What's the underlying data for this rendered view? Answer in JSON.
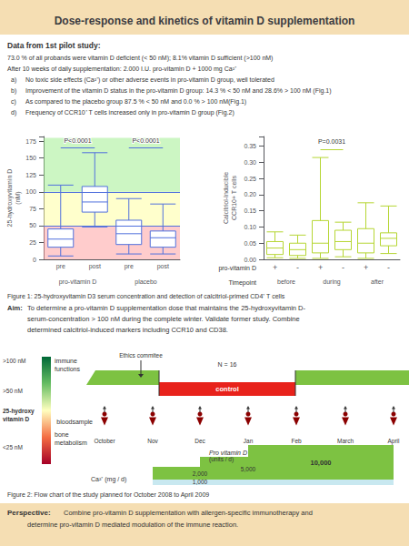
{
  "title": "Dose-response and kinetics of vitamin D supplementation",
  "title_bg": "#f5deb3",
  "pilot": {
    "title": "Data from 1st pilot study:",
    "lines": [
      "73.0 % of all probands were vitamin D deficient (< 50 nM); 8.1% vitamin D sufficient (>100 nM)",
      "After 10 weeks of daily supplementation: 2.000 I.U. pro-vitamin D + 1000 mg Ca²⁺"
    ],
    "items": [
      {
        "label": "a)",
        "text": "No toxic side effects (Ca²⁺) or other adverse events in pro-vitamin D group, well tolerated"
      },
      {
        "label": "b)",
        "text": "Improvement of the vitamin D status in the pro-vitamin D group: 14.3 % < 50 nM and 28.6% > 100 nM (Fig.1)"
      },
      {
        "label": "c)",
        "text": "As compared to the placebo group 87.5 % < 50 nM and 0.0 % > 100 nM(Fig.1)"
      },
      {
        "label": "d)",
        "text": "Frequency of CCR10⁺ T cells increased only in pro-vitamin D group (Fig.2)"
      }
    ]
  },
  "chart_data": [
    {
      "type": "box",
      "categories": [
        "pre",
        "post",
        "pre",
        "post"
      ],
      "groups": [
        "pro-vitamin D",
        "placebo"
      ],
      "ylabel": "25-hydroxyvitamin D\n(nM)",
      "ylim": [
        0,
        182
      ],
      "yticks": [
        0,
        25,
        50,
        75,
        100,
        125,
        150,
        175
      ],
      "grid": false,
      "boxes": [
        {
          "wlo": 5,
          "q1": 18,
          "med": 30,
          "q3": 45,
          "whi": 110
        },
        {
          "wlo": 48,
          "q1": 70,
          "med": 85,
          "q3": 108,
          "whi": 158
        },
        {
          "wlo": 8,
          "q1": 22,
          "med": 38,
          "q3": 58,
          "whi": 90
        },
        {
          "wlo": 8,
          "q1": 18,
          "med": 32,
          "q3": 42,
          "whi": 82
        }
      ],
      "bands": [
        {
          "range": [
            0,
            50
          ],
          "color": "#ff9999"
        },
        {
          "range": [
            50,
            100
          ],
          "color": "#ffff99"
        },
        {
          "range": [
            100,
            180
          ],
          "color": "#99ee88"
        }
      ],
      "hlines": [
        50,
        100
      ],
      "brackets": [
        {
          "group": "pro-vitamin D",
          "y": 165,
          "label": "P<0.0001"
        },
        {
          "group": "placebo",
          "y": 165,
          "label": "P<0.0001"
        }
      ]
    },
    {
      "type": "box",
      "categories": [
        "+",
        "-",
        "+",
        "-",
        "+",
        "-"
      ],
      "category_title": "pro-vitamin D",
      "groups": [
        "before",
        "during",
        "after"
      ],
      "group_title": "Timepoint",
      "ylabel": "Calcitriol-Inducible\nCCR10+ T cells",
      "ylim": [
        0,
        0.38
      ],
      "yticks": [
        {
          "value": 0,
          "label": "0.00"
        },
        0.05,
        {
          "value": 0.1,
          "label": "0.10"
        },
        0.15,
        {
          "value": 0.2,
          "label": "0.20"
        },
        0.25,
        {
          "value": 0.3,
          "label": "0.30"
        },
        0.35
      ],
      "grid": false,
      "boxes": [
        {
          "wlo": 0.005,
          "q1": 0.015,
          "med": 0.035,
          "q3": 0.055,
          "whi": 0.085
        },
        {
          "wlo": 0.003,
          "q1": 0.012,
          "med": 0.03,
          "q3": 0.05,
          "whi": 0.075
        },
        {
          "wlo": 0.003,
          "q1": 0.02,
          "med": 0.05,
          "q3": 0.12,
          "whi": 0.315
        },
        {
          "wlo": 0.008,
          "q1": 0.03,
          "med": 0.055,
          "q3": 0.09,
          "whi": 0.115
        },
        {
          "wlo": 0.003,
          "q1": 0.02,
          "med": 0.05,
          "q3": 0.095,
          "whi": 0.175
        },
        {
          "wlo": 0.018,
          "q1": 0.042,
          "med": 0.065,
          "q3": 0.082,
          "whi": 0.165
        }
      ],
      "brackets": [
        {
          "group": "during",
          "y": 0.34,
          "label": "P=0.0031"
        }
      ]
    }
  ],
  "figure1_caption": "Figure 1: 25-hydroxyvitamin D3 serum concentration and detection of calcitriol-primed CD4⁺ T cells",
  "aim": {
    "label": "Aim:",
    "lines": [
      "To determine a pro-vitamin D supplementation dose that maintains the 25-hydroxyvitamin D-",
      "serum-concentration > 100 nM during the complete winter. Validate former study. Combine",
      "determined calcitriol-induced markers including CCR10 and CD38."
    ]
  },
  "flow_chart": {
    "scale_labels": [
      ">100 nM",
      ">50 nM",
      "<25 nM"
    ],
    "scale_title": "25-hydroxy\nvitamin D",
    "scale_colors": [
      "#a50026",
      "#f46d43",
      "#ffffbf",
      "#66bd63",
      "#006837"
    ],
    "top_label": "immune\nfunctions",
    "bottom_label": "bone\nmetabolism",
    "months": [
      "October",
      "Nov",
      "Dec",
      "Jan",
      "Feb",
      "March",
      "April"
    ],
    "green_color": "#7dc242",
    "red_color": "#e8221b",
    "light_blue": "#c8e8f0",
    "drop_color": "#8b0000",
    "control_label": "control",
    "control_text_color": "#ffffff",
    "n_label": "N = 16",
    "ethics_label": "Ethics commitee",
    "sample_label": "bloodsample",
    "dose_title": "Pro vitamin D",
    "dose_unit": "(units / d)",
    "doses": [
      "2,000",
      "5,000",
      "10,000"
    ],
    "calcium_label": "Ca²⁺ (mg / d)",
    "calcium_dose": "1,000"
  },
  "figure2_caption": "Figure 2: Flow chart of the study planned for October 2008 to April 2009",
  "perspective": {
    "label": "Perspective:",
    "lines": [
      "Combine pro-vitamin D supplementation with allergen-specific immunotherapy and",
      "determine pro-vitamin D mediated modulation of the immune reaction."
    ]
  }
}
